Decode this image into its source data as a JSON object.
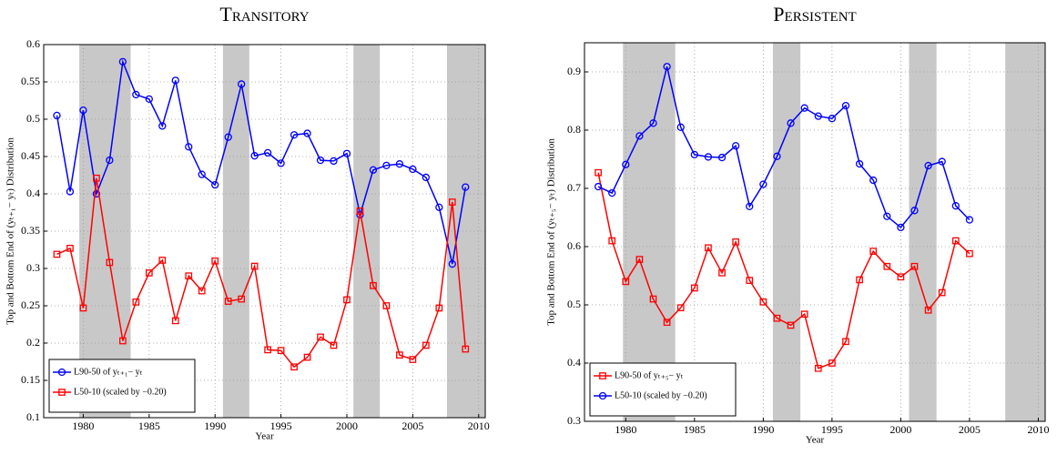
{
  "chart_data": [
    {
      "type": "line",
      "title": "Transitory",
      "xlabel": "Year",
      "ylabel": "Top and Bottom End of (yₜ₊₁− yₜ) Distribution",
      "x": [
        1978,
        1979,
        1980,
        1981,
        1982,
        1983,
        1984,
        1985,
        1986,
        1987,
        1988,
        1989,
        1990,
        1991,
        1992,
        1993,
        1994,
        1995,
        1996,
        1997,
        1998,
        1999,
        2000,
        2001,
        2002,
        2003,
        2004,
        2005,
        2006,
        2007,
        2008,
        2009
      ],
      "series": [
        {
          "name": "L90-50 of yₜ₊₁− yₜ",
          "color": "#0000ff",
          "marker": "circle",
          "values": [
            0.505,
            0.403,
            0.512,
            0.4,
            0.445,
            0.577,
            0.533,
            0.527,
            0.491,
            0.552,
            0.463,
            0.426,
            0.412,
            0.476,
            0.547,
            0.451,
            0.455,
            0.441,
            0.479,
            0.481,
            0.445,
            0.444,
            0.454,
            0.372,
            0.432,
            0.438,
            0.44,
            0.433,
            0.422,
            0.382,
            0.306,
            0.409
          ]
        },
        {
          "name": "L50-10 (scaled by −0.20)",
          "color": "#ff0000",
          "marker": "square",
          "values": [
            0.319,
            0.327,
            0.247,
            0.421,
            0.308,
            0.203,
            0.255,
            0.294,
            0.311,
            0.23,
            0.29,
            0.27,
            0.31,
            0.256,
            0.259,
            0.303,
            0.191,
            0.19,
            0.168,
            0.181,
            0.208,
            0.197,
            0.258,
            0.377,
            0.277,
            0.25,
            0.184,
            0.178,
            0.197,
            0.247,
            0.389,
            0.192
          ]
        }
      ],
      "shaded_regions": [
        [
          1979.7,
          1983.6
        ],
        [
          1990.6,
          1992.6
        ],
        [
          2000.5,
          2002.5
        ],
        [
          2007.6,
          2010.5
        ]
      ],
      "xlim": [
        1977,
        2010.5
      ],
      "xticks": [
        1980,
        1985,
        1990,
        1995,
        2000,
        2005,
        2010
      ],
      "ylim": [
        0.1,
        0.6
      ],
      "yticks": [
        0.1,
        0.15,
        0.2,
        0.25,
        0.3,
        0.35,
        0.4,
        0.45,
        0.5,
        0.55,
        0.6
      ],
      "grid": true,
      "legend": "lower left"
    },
    {
      "type": "line",
      "title": "Persistent",
      "xlabel": "Year",
      "ylabel": "Top and Bottom End of (yₜ₊₅− yₜ) Distribution",
      "x": [
        1978,
        1979,
        1980,
        1981,
        1982,
        1983,
        1984,
        1985,
        1986,
        1987,
        1988,
        1989,
        1990,
        1991,
        1992,
        1993,
        1994,
        1995,
        1996,
        1997,
        1998,
        1999,
        2000,
        2001,
        2002,
        2003,
        2004,
        2005
      ],
      "series": [
        {
          "name": "L90-50 of yₜ₊₅− yₜ",
          "color": "#ff0000",
          "marker": "square",
          "values": [
            0.727,
            0.61,
            0.54,
            0.578,
            0.51,
            0.47,
            0.495,
            0.529,
            0.598,
            0.555,
            0.608,
            0.542,
            0.505,
            0.477,
            0.465,
            0.484,
            0.391,
            0.4,
            0.437,
            0.543,
            0.592,
            0.566,
            0.548,
            0.566,
            0.491,
            0.521,
            0.61,
            0.588
          ]
        },
        {
          "name": "L50-10 (scaled by −0.20)",
          "color": "#0000ff",
          "marker": "circle",
          "values": [
            0.703,
            0.692,
            0.741,
            0.79,
            0.812,
            0.909,
            0.805,
            0.758,
            0.754,
            0.753,
            0.773,
            0.669,
            0.707,
            0.755,
            0.812,
            0.838,
            0.824,
            0.82,
            0.842,
            0.742,
            0.714,
            0.652,
            0.633,
            0.662,
            0.739,
            0.746,
            0.67,
            0.646
          ]
        }
      ],
      "shaded_regions": [
        [
          1979.8,
          1983.6
        ],
        [
          1990.7,
          1992.7
        ],
        [
          2000.6,
          2002.6
        ],
        [
          2007.6,
          2010.5
        ]
      ],
      "xlim": [
        1977,
        2010.5
      ],
      "xticks": [
        1980,
        1985,
        1990,
        1995,
        2000,
        2005,
        2010
      ],
      "ylim": [
        0.3,
        0.95
      ],
      "yticks": [
        0.3,
        0.4,
        0.5,
        0.6,
        0.7,
        0.8,
        0.9
      ],
      "grid": true,
      "legend": "lower left"
    }
  ]
}
